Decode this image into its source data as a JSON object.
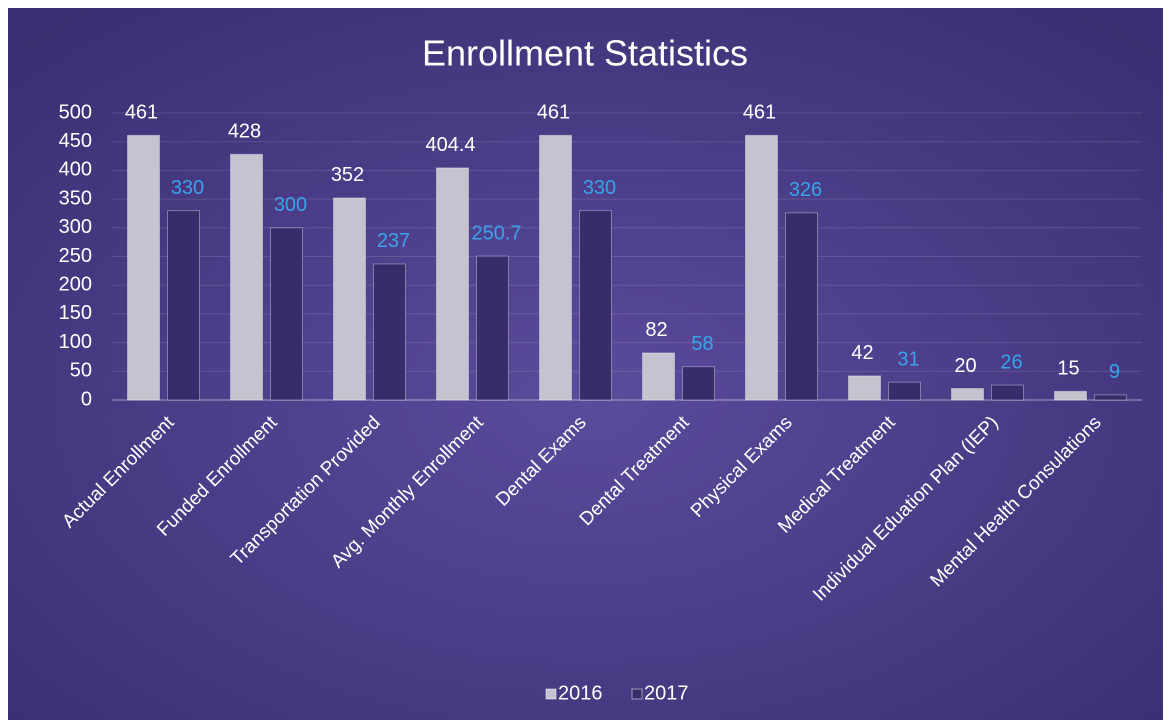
{
  "chart_data": {
    "type": "bar",
    "title": "Enrollment Statistics",
    "categories": [
      "Actual Enrollment",
      "Funded Enrollment",
      "Transportation Provided",
      "Avg. Monthly Enrollment",
      "Dental Exams",
      "Dental Treatment",
      "Physical Exams",
      "Medical Treatment",
      "Individual Eduation Plan (IEP)",
      "Mental Health Consulations"
    ],
    "series": [
      {
        "name": "2016",
        "color": "#c4c3d0",
        "label_color": "#ffffff",
        "values": [
          461,
          428,
          352,
          404.4,
          461,
          82,
          461,
          42,
          20,
          15
        ]
      },
      {
        "name": "2017",
        "color": "#382c6b",
        "label_color": "#3aa3ec",
        "values": [
          330,
          300,
          237,
          250.7,
          330,
          58,
          326,
          31,
          26,
          9
        ]
      }
    ],
    "ylim": [
      0,
      500
    ],
    "yticks": [
      0,
      50,
      100,
      150,
      200,
      250,
      300,
      350,
      400,
      450,
      500
    ],
    "grid": true,
    "legend": "bottom"
  }
}
